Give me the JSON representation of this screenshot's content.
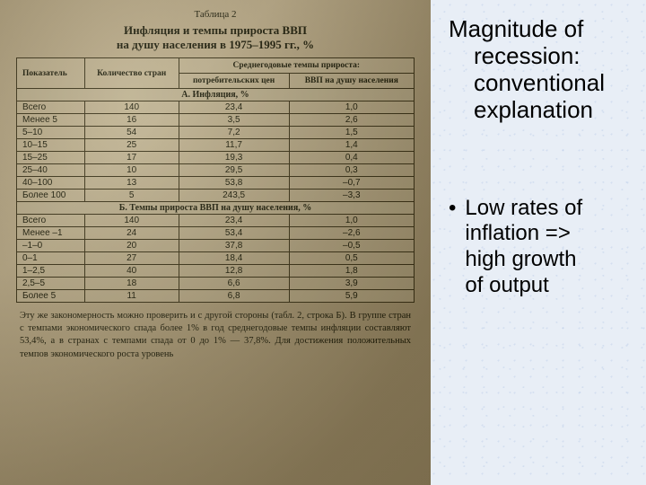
{
  "photo": {
    "table_label": "Таблица 2",
    "title_line1": "Инфляция и темпы прироста ВВП",
    "title_line2": "на душу населения в 1975–1995 гг., %",
    "headers": {
      "indicator": "Показатель",
      "countries": "Количество стран",
      "avg_growth": "Среднегодовые темпы прироста:",
      "cpi": "потребительских цен",
      "gdp": "ВВП на душу населения"
    },
    "section_a": "А. Инфляция, %",
    "rows_a": [
      {
        "label": "Всего",
        "n": "140",
        "cpi": "23,4",
        "gdp": "1,0"
      },
      {
        "label": "Менее 5",
        "n": "16",
        "cpi": "3,5",
        "gdp": "2,6"
      },
      {
        "label": "5–10",
        "n": "54",
        "cpi": "7,2",
        "gdp": "1,5"
      },
      {
        "label": "10–15",
        "n": "25",
        "cpi": "11,7",
        "gdp": "1,4"
      },
      {
        "label": "15–25",
        "n": "17",
        "cpi": "19,3",
        "gdp": "0,4"
      },
      {
        "label": "25–40",
        "n": "10",
        "cpi": "29,5",
        "gdp": "0,3"
      },
      {
        "label": "40–100",
        "n": "13",
        "cpi": "53,8",
        "gdp": "–0,7"
      },
      {
        "label": "Более 100",
        "n": "5",
        "cpi": "243,5",
        "gdp": "–3,3"
      }
    ],
    "section_b": "Б. Темпы прироста ВВП на душу населения, %",
    "rows_b": [
      {
        "label": "Всего",
        "n": "140",
        "cpi": "23,4",
        "gdp": "1,0"
      },
      {
        "label": "Менее –1",
        "n": "24",
        "cpi": "53,4",
        "gdp": "–2,6"
      },
      {
        "label": "–1–0",
        "n": "20",
        "cpi": "37,8",
        "gdp": "–0,5"
      },
      {
        "label": "0–1",
        "n": "27",
        "cpi": "18,4",
        "gdp": "0,5"
      },
      {
        "label": "1–2,5",
        "n": "40",
        "cpi": "12,8",
        "gdp": "1,8"
      },
      {
        "label": "2,5–5",
        "n": "18",
        "cpi": "6,6",
        "gdp": "3,9"
      },
      {
        "label": "Более 5",
        "n": "11",
        "cpi": "6,8",
        "gdp": "5,9"
      }
    ],
    "bottom_paragraph": "Эту же закономерность можно проверить и с другой стороны (табл. 2, строка Б). В группе стран с темпами экономического спада более 1% в год среднегодовые темпы инфляции составляют 53,4%, а в странах с темпами спада от 0 до 1% — 37,8%. Для достижения положительных темпов экономического роста уровень"
  },
  "slide": {
    "heading_l1": "Magnitude of",
    "heading_l2": "recession:",
    "heading_l3": "conventional",
    "heading_l4": "explanation",
    "bullet_l1": "Low rates of",
    "bullet_l2": "inflation  =>",
    "bullet_l3": "high growth",
    "bullet_l4": "of output"
  }
}
